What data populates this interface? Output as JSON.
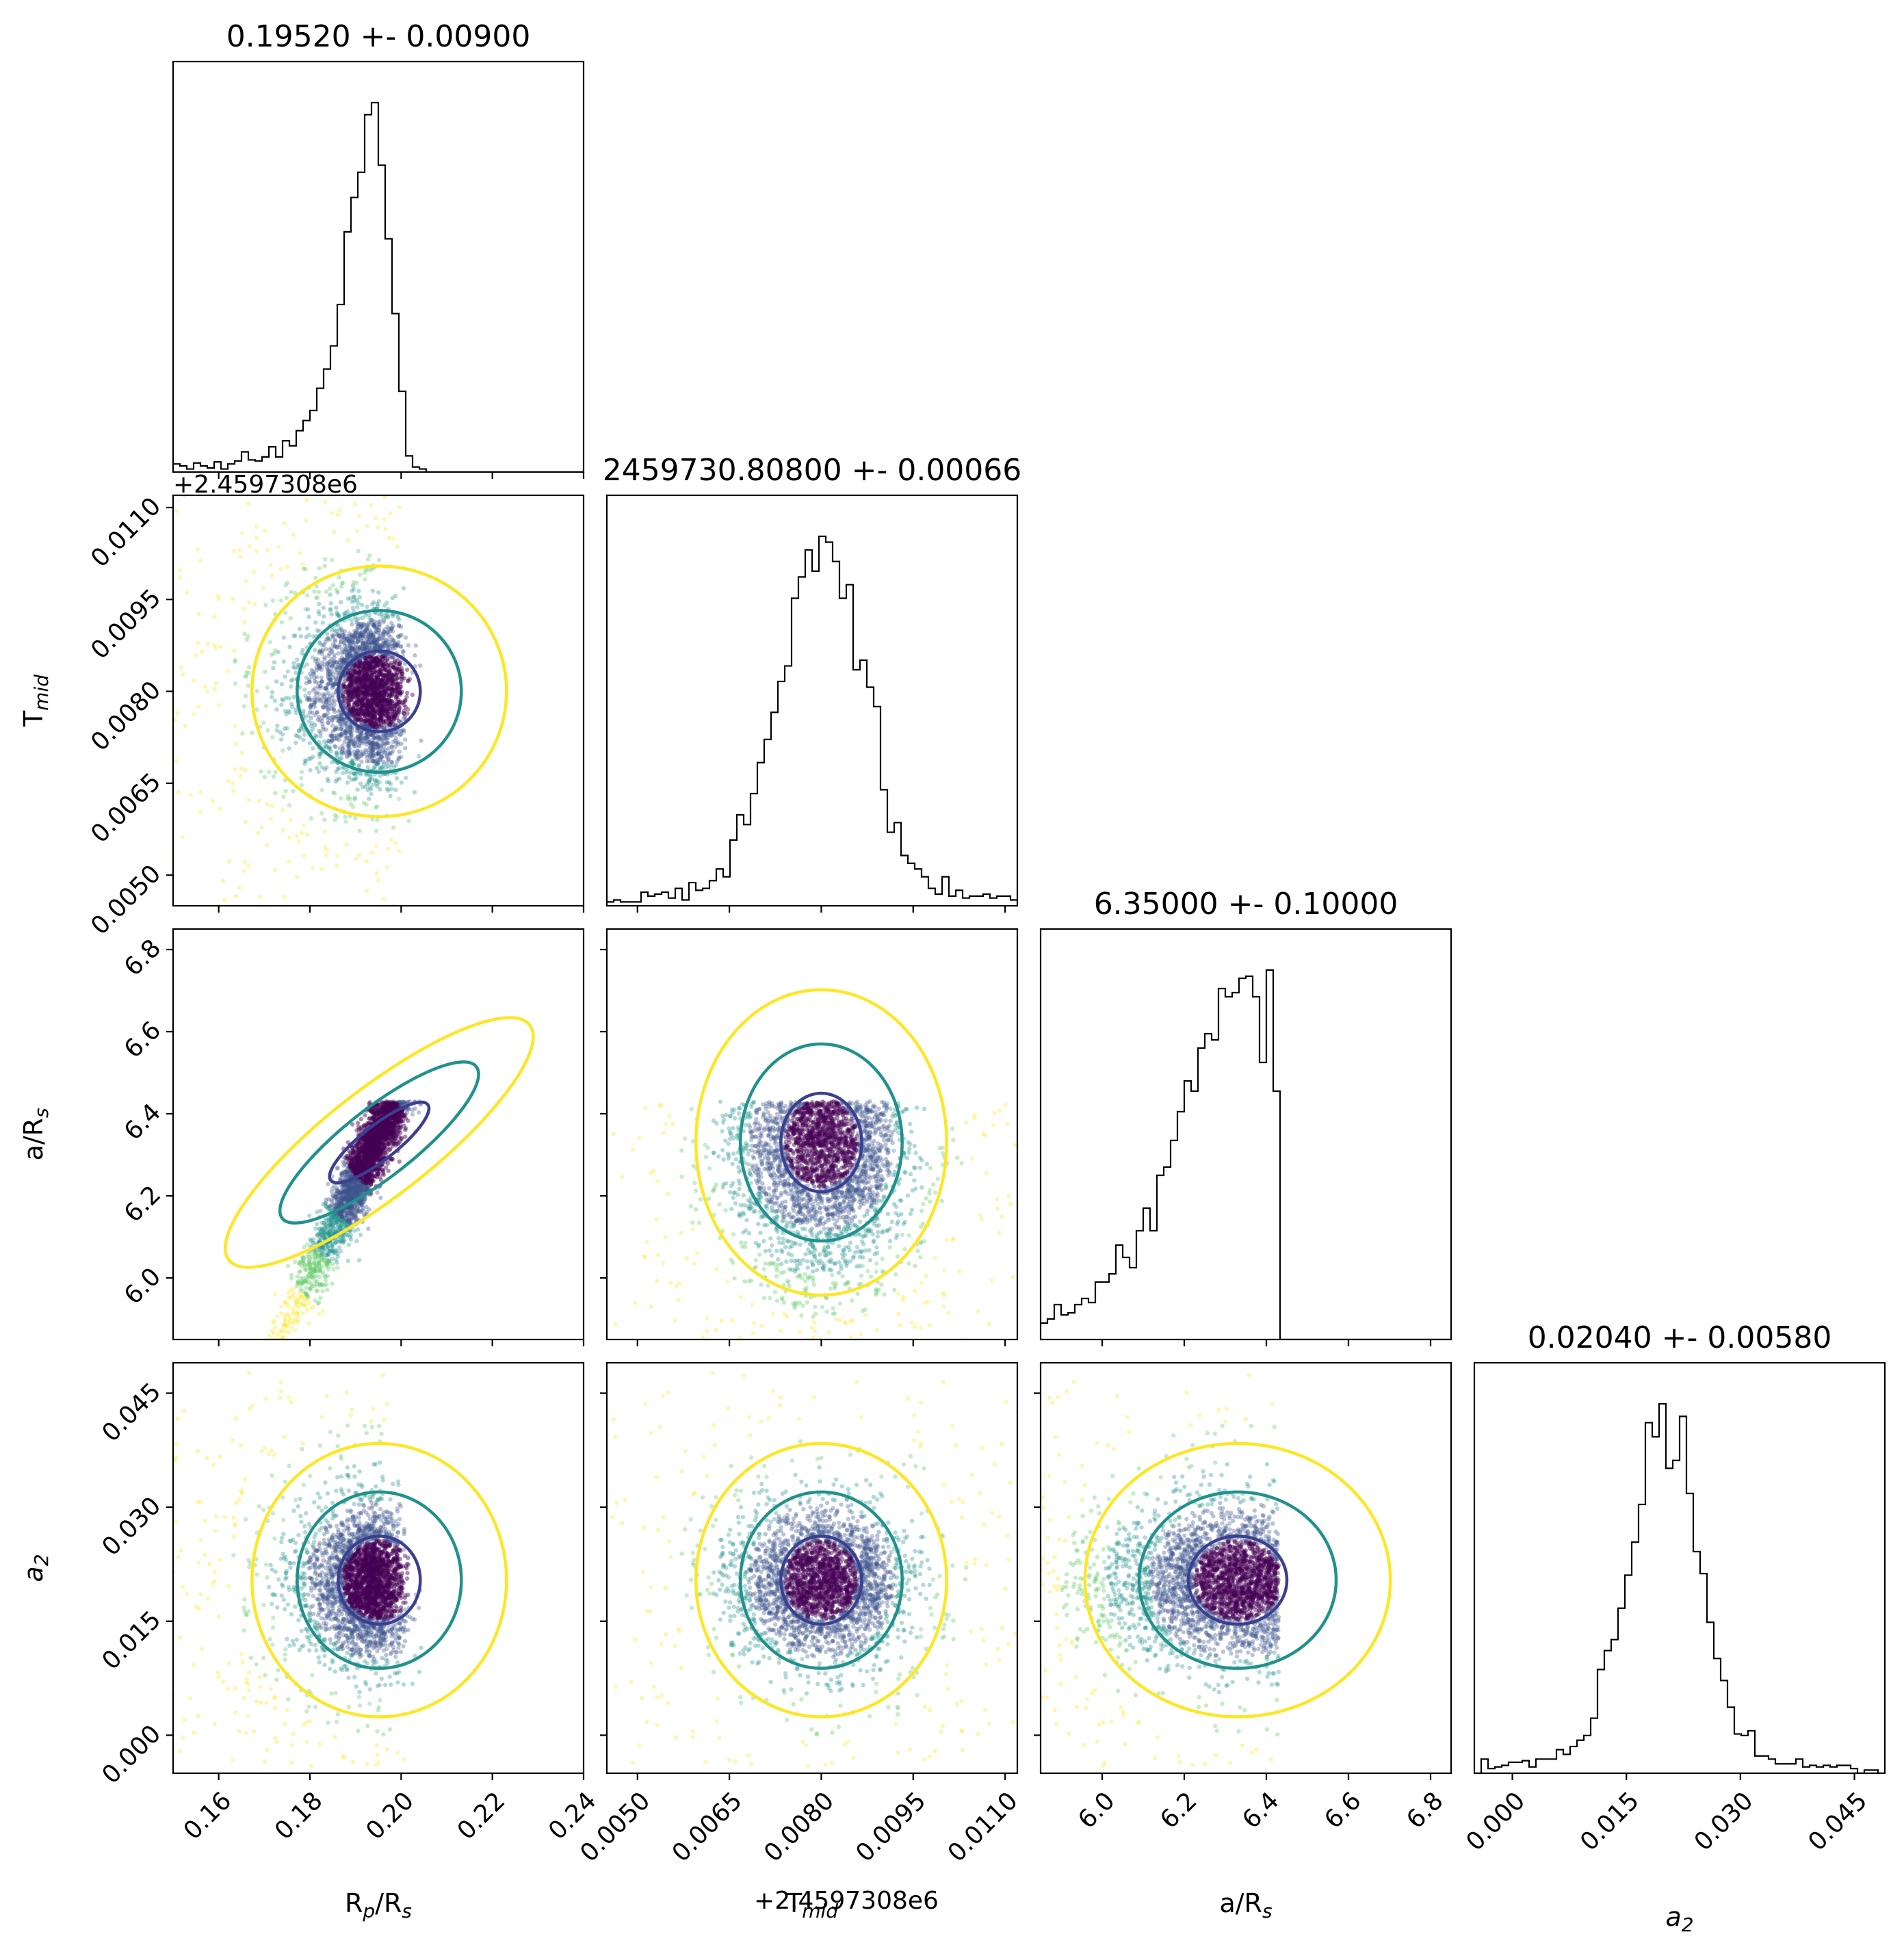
{
  "chart_data": {
    "type": "corner",
    "parameters": [
      {
        "key": "rp",
        "label": "R",
        "label_sub": "p",
        "label_tail": "/R",
        "label_sub2": "s",
        "range": [
          0.15,
          0.24
        ],
        "ticks": [
          0.16,
          0.18,
          0.2,
          0.22,
          0.24
        ],
        "tick_labels": [
          "0.16",
          "0.18",
          "0.20",
          "0.22",
          "0.24"
        ],
        "title": "0.19520 +- 0.00900",
        "median": 0.1952,
        "sigma": 0.009
      },
      {
        "key": "tmid",
        "label": "T",
        "label_sub": "mid",
        "label_tail": "",
        "label_sub2": "",
        "range": [
          0.0045,
          0.0112
        ],
        "ticks": [
          0.005,
          0.0065,
          0.008,
          0.0095,
          0.011
        ],
        "tick_labels": [
          "0.0050",
          "0.0065",
          "0.0080",
          "0.0095",
          "0.0110"
        ],
        "offset": "+2.4597308e6",
        "offset_left_fragment": "+2.4597308e6",
        "title": "2459730.80800 +- 0.00066",
        "median": 0.008,
        "sigma": 0.00066
      },
      {
        "key": "ars",
        "label": "a/R",
        "label_sub": "s",
        "label_tail": "",
        "label_sub2": "",
        "range": [
          5.85,
          6.85
        ],
        "ticks": [
          6.0,
          6.2,
          6.4,
          6.6,
          6.8
        ],
        "tick_labels": [
          "6.0",
          "6.2",
          "6.4",
          "6.6",
          "6.8"
        ],
        "upper_bound": 6.43,
        "title": "6.35000 +- 0.10000",
        "median": 6.35,
        "sigma": 0.1
      },
      {
        "key": "a2",
        "label": "a",
        "label_sub": "2",
        "label_tail": "",
        "label_sub2": "",
        "italic": true,
        "range": [
          -0.005,
          0.049
        ],
        "ticks": [
          0.0,
          0.015,
          0.03,
          0.045
        ],
        "tick_labels": [
          "0.000",
          "0.015",
          "0.030",
          "0.045"
        ],
        "title": "0.02040 +- 0.00580",
        "median": 0.0204,
        "sigma": 0.0058
      }
    ],
    "contour_levels": [
      {
        "name": "1-sigma",
        "color": "#3b3f8f"
      },
      {
        "name": "2-sigma",
        "color": "#21918c"
      },
      {
        "name": "3-sigma",
        "color": "#fde725"
      }
    ],
    "scatter_colormap": [
      "#440154",
      "#3b528b",
      "#21918c",
      "#5ec962",
      "#fde725"
    ],
    "histogram_color": "#000000",
    "bins": 60,
    "grid": false,
    "legend": "none"
  }
}
